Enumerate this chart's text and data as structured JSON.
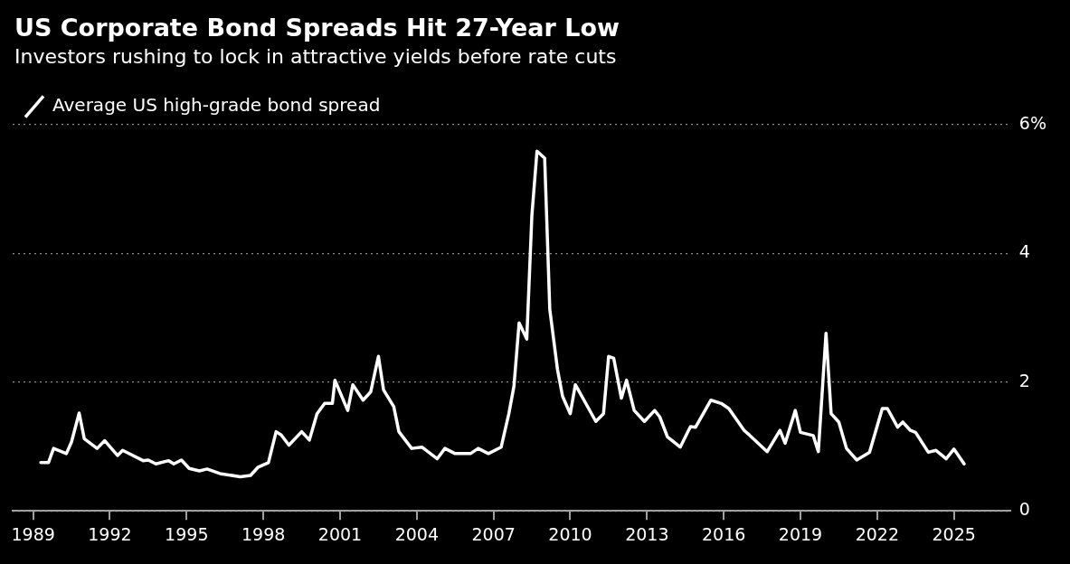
{
  "chart_data": {
    "type": "line",
    "title": "US Corporate Bond Spreads Hit 27-Year Low",
    "subtitle": "Investors rushing to lock in attractive yields before rate cuts",
    "x": [
      1989.3,
      1989.6,
      1989.8,
      1990.3,
      1990.5,
      1990.8,
      1991.0,
      1991.5,
      1991.8,
      1992.3,
      1992.5,
      1993.3,
      1993.5,
      1993.8,
      1994.3,
      1994.5,
      1994.8,
      1995.1,
      1995.5,
      1995.8,
      1996.3,
      1997.1,
      1997.5,
      1997.8,
      1998.2,
      1998.5,
      1998.7,
      1999.0,
      1999.5,
      1999.8,
      2000.1,
      2000.4,
      2000.7,
      2000.8,
      2001.3,
      2001.5,
      2001.9,
      2002.2,
      2002.5,
      2002.7,
      2003.1,
      2003.3,
      2003.8,
      2004.2,
      2004.8,
      2005.1,
      2005.5,
      2006.1,
      2006.4,
      2006.8,
      2007.3,
      2007.6,
      2007.8,
      2008.0,
      2008.3,
      2008.5,
      2008.7,
      2009.0,
      2009.2,
      2009.5,
      2009.7,
      2010.0,
      2010.2,
      2011.0,
      2011.3,
      2011.5,
      2011.7,
      2012.0,
      2012.2,
      2012.5,
      2012.9,
      2013.3,
      2013.5,
      2013.8,
      2014.3,
      2014.7,
      2014.9,
      2015.5,
      2015.9,
      2016.2,
      2016.8,
      2017.0,
      2017.7,
      2018.2,
      2018.4,
      2018.8,
      2019.0,
      2019.5,
      2019.7,
      2020.0,
      2020.2,
      2020.5,
      2020.8,
      2021.2,
      2021.7,
      2022.2,
      2022.4,
      2022.8,
      2023.0,
      2023.3,
      2023.5,
      2024.0,
      2024.3,
      2024.7,
      2025.0,
      2025.4
    ],
    "series": [
      {
        "name": "Average US high-grade bond spread",
        "color": "#ffffff",
        "values": [
          0.75,
          0.75,
          0.97,
          0.89,
          1.07,
          1.52,
          1.12,
          0.97,
          1.09,
          0.86,
          0.94,
          0.78,
          0.79,
          0.73,
          0.78,
          0.73,
          0.79,
          0.66,
          0.62,
          0.65,
          0.58,
          0.53,
          0.55,
          0.68,
          0.75,
          1.23,
          1.18,
          1.02,
          1.23,
          1.1,
          1.51,
          1.67,
          1.67,
          2.03,
          1.56,
          1.96,
          1.72,
          1.85,
          2.4,
          1.88,
          1.62,
          1.23,
          0.97,
          0.99,
          0.81,
          0.97,
          0.89,
          0.89,
          0.97,
          0.89,
          0.99,
          1.51,
          1.94,
          2.92,
          2.67,
          4.59,
          5.59,
          5.48,
          3.13,
          2.2,
          1.78,
          1.51,
          1.96,
          1.39,
          1.51,
          2.4,
          2.37,
          1.75,
          2.03,
          1.56,
          1.39,
          1.56,
          1.46,
          1.15,
          0.99,
          1.31,
          1.3,
          1.72,
          1.67,
          1.59,
          1.25,
          1.18,
          0.92,
          1.25,
          1.05,
          1.56,
          1.22,
          1.17,
          0.92,
          2.76,
          1.51,
          1.38,
          0.97,
          0.79,
          0.91,
          1.59,
          1.59,
          1.3,
          1.38,
          1.25,
          1.22,
          0.91,
          0.94,
          0.81,
          0.96,
          0.73
        ]
      }
    ],
    "xlim": [
      1988.2,
      2027.2
    ],
    "xticks": [
      1989,
      1992,
      1995,
      1998,
      2001,
      2004,
      2007,
      2010,
      2013,
      2016,
      2019,
      2022,
      2025
    ],
    "ylim": [
      0,
      6
    ],
    "yticks": [
      0,
      2,
      4,
      {
        "value": 6,
        "label": "6%"
      }
    ],
    "grid": "y",
    "legend": "top left",
    "marker": "none",
    "line_style": "solid"
  }
}
